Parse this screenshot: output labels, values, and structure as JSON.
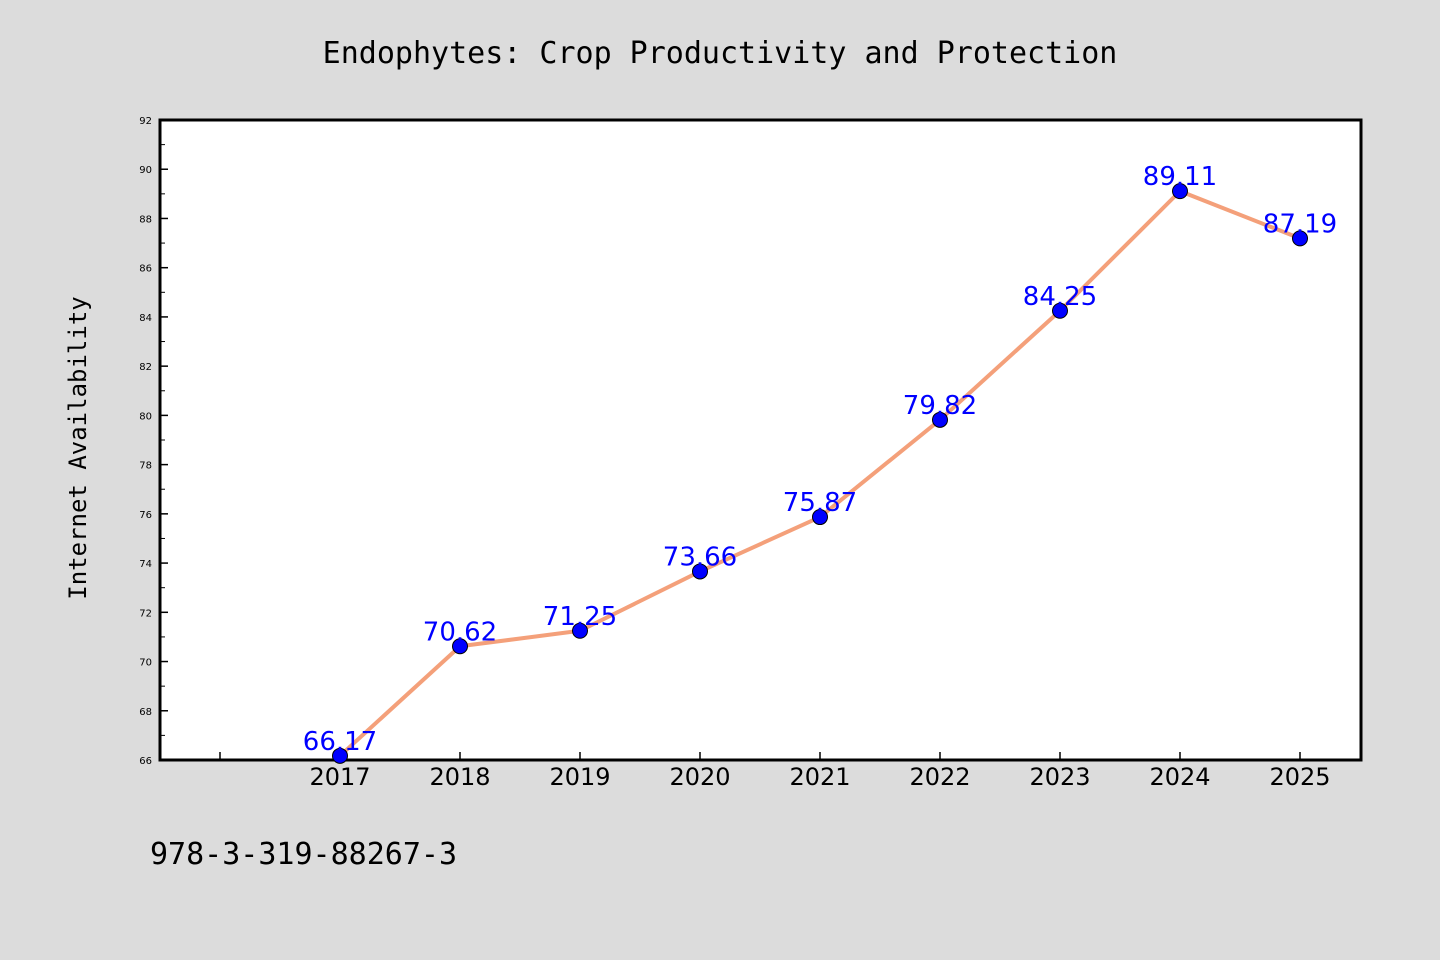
{
  "chart_data": {
    "type": "line",
    "title": "Endophytes: Crop Productivity and Protection",
    "xlabel": "",
    "ylabel": "Internet Availability",
    "categories": [
      "2017",
      "2018",
      "2019",
      "2020",
      "2021",
      "2022",
      "2023",
      "2024",
      "2025"
    ],
    "series": [
      {
        "values": [
          66.17,
          70.62,
          71.25,
          73.66,
          75.87,
          79.82,
          84.25,
          89.11,
          87.19
        ],
        "labels": [
          "66.17",
          "70.62",
          "71.25",
          "73.66",
          "75.87",
          "79.82",
          "84.25",
          "89.11",
          "87.19"
        ]
      }
    ],
    "ylim": [
      66,
      92
    ],
    "yticks": [
      "66",
      "68",
      "70",
      "72",
      "74",
      "76",
      "78",
      "80",
      "82",
      "84",
      "86",
      "88",
      "90",
      "92"
    ],
    "grid": false,
    "line_color": "#f4a07a",
    "marker_color": "#0000ff",
    "label_color": "#0000ff"
  },
  "footer": {
    "isbn": "978-3-319-88267-3"
  }
}
